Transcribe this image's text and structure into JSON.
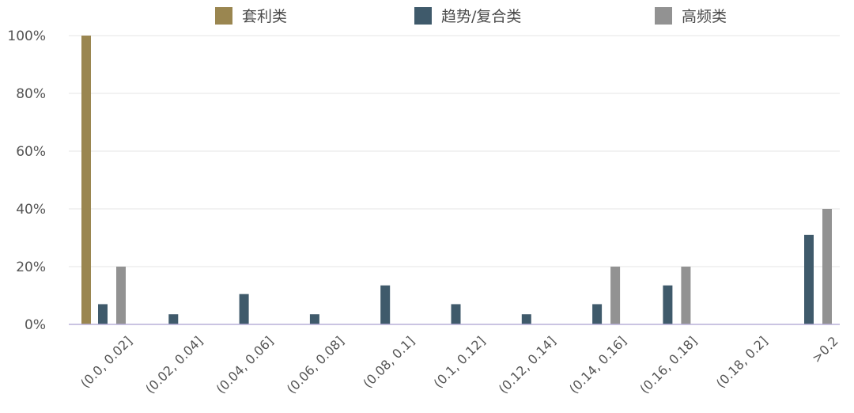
{
  "chart_data": {
    "type": "bar",
    "title": "",
    "xlabel": "",
    "ylabel": "",
    "ylim": [
      0,
      100
    ],
    "yticks": [
      "0%",
      "20%",
      "40%",
      "60%",
      "80%",
      "100%"
    ],
    "grid": true,
    "legend_position": "top",
    "categories": [
      "(0.0, 0.02]",
      "(0.02, 0.04]",
      "(0.04, 0.06]",
      "(0.06, 0.08]",
      "(0.08, 0.1]",
      "(0.1, 0.12]",
      "(0.12, 0.14]",
      "(0.14, 0.16]",
      "(0.16, 0.18]",
      "(0.18, 0.2]",
      ">0.2"
    ],
    "series": [
      {
        "name": "套利类",
        "color": "#9a8650",
        "values": [
          100,
          0,
          0,
          0,
          0,
          0,
          0,
          0,
          0,
          0,
          0
        ]
      },
      {
        "name": "趋势/复合类",
        "color": "#3f5a6b",
        "values": [
          7,
          3.5,
          10.5,
          3.5,
          13.5,
          7,
          3.5,
          7,
          13.5,
          0,
          31
        ]
      },
      {
        "name": "高频类",
        "color": "#929292",
        "values": [
          20,
          0,
          0,
          0,
          0,
          0,
          0,
          20,
          20,
          0,
          40
        ]
      }
    ]
  }
}
